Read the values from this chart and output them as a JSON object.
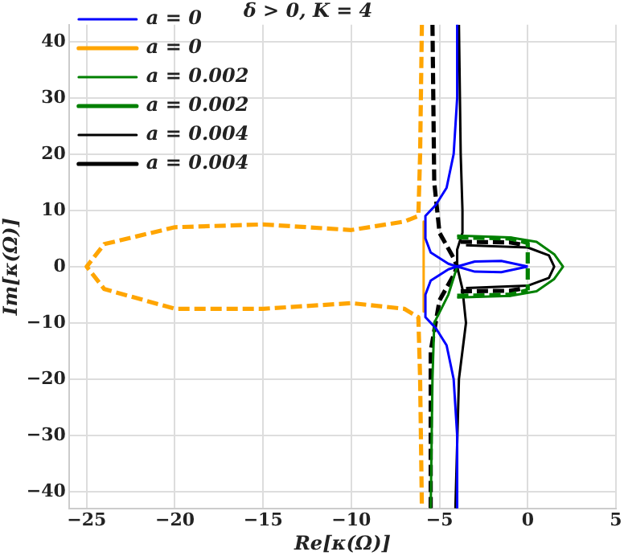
{
  "chart_data": {
    "type": "line",
    "title": "δ > 0, K = 4",
    "xlabel": "Re[κ(Ω)]",
    "ylabel": "Im[κ(Ω)]",
    "xlim": [
      -26,
      5
    ],
    "ylim": [
      -43,
      43
    ],
    "xticks": [
      -25,
      -20,
      -15,
      -10,
      -5,
      0,
      5
    ],
    "yticks": [
      -40,
      -30,
      -20,
      -10,
      0,
      10,
      20,
      30,
      40
    ],
    "grid": true,
    "legend": "top left",
    "marker": "none",
    "series": [
      {
        "name": "a = 0",
        "color": "#0000ff",
        "line_style": "solid",
        "x": [
          -4,
          -4,
          -4.2,
          -4.6,
          -5.2,
          -5.8,
          -5.8,
          -5.5,
          -4.5,
          -4,
          -4.5,
          -5.5,
          -5.8,
          -5.8,
          -5.2,
          -4.6,
          -4.2,
          -4,
          -4
        ],
        "values": [
          43,
          30,
          20,
          14,
          11,
          9,
          5,
          2.5,
          0.5,
          0,
          -0.5,
          -2.5,
          -5,
          -9,
          -11,
          -14,
          -20,
          -30,
          -43
        ]
      },
      {
        "color": "#0000ff",
        "line_style": "solid",
        "x": [
          -4,
          -3,
          -1.5,
          0
        ],
        "values": [
          0,
          0.9,
          1,
          0
        ]
      },
      {
        "color": "#0000ff",
        "line_style": "solid",
        "x": [
          -4,
          -3,
          -1.5,
          0
        ],
        "values": [
          0,
          -0.9,
          -1,
          0
        ]
      },
      {
        "name": "a = 0",
        "color": "#ffa500",
        "line_style": "dashed",
        "x": [
          -6,
          -6.1,
          -6.2,
          -7,
          -10,
          -15,
          -20,
          -24,
          -25,
          -24,
          -20,
          -15,
          -10,
          -7,
          -6.2,
          -6.1,
          -6
        ],
        "values": [
          43,
          20,
          9,
          8,
          6.5,
          7.5,
          7,
          4,
          0,
          -4,
          -7.5,
          -7.5,
          -6.5,
          -7.5,
          -9,
          -20,
          -43
        ]
      },
      {
        "color": "#ffa500",
        "line_style": "solid",
        "x": [
          -5.9,
          -5.9
        ],
        "values": [
          8,
          -8
        ]
      },
      {
        "name": "a = 0.002",
        "color": "#008000",
        "line_style": "solid",
        "x": [
          -5.5,
          -5.4,
          -5.3,
          -4.5,
          -4
        ],
        "values": [
          -43,
          -20,
          -10,
          -5,
          0
        ]
      },
      {
        "color": "#008000",
        "line_style": "solid",
        "x": [
          -4,
          -1,
          0.5,
          1.5,
          2,
          1.5,
          0.5,
          -1,
          -4
        ],
        "values": [
          5.5,
          5.2,
          4.4,
          2.2,
          0,
          -2.2,
          -4.4,
          -5.2,
          -5.5
        ]
      },
      {
        "name": "a = 0.002",
        "color": "#008000",
        "line_style": "dashed",
        "x": [
          -4,
          -1,
          0,
          0
        ],
        "values": [
          5.2,
          5,
          4.2,
          -4.2
        ]
      },
      {
        "color": "#008000",
        "line_style": "dashed",
        "x": [
          -4,
          -1,
          0
        ],
        "values": [
          -5.2,
          -5,
          -4.2
        ]
      },
      {
        "name": "a = 0.004",
        "color": "#000000",
        "line_style": "solid",
        "x": [
          -3.9,
          -3.8,
          -3.7,
          -3.7,
          -4,
          -4,
          -3.7,
          -3.5,
          -3.9,
          -4.1
        ],
        "values": [
          43,
          20,
          10,
          6,
          3,
          0,
          -4,
          -10,
          -20,
          -43
        ]
      },
      {
        "color": "#000000",
        "line_style": "solid",
        "x": [
          -3.5,
          0,
          1.2,
          1.5,
          1.2,
          0,
          -3.5
        ],
        "values": [
          3.8,
          3.4,
          2,
          0,
          -2,
          -3.4,
          -3.8
        ]
      },
      {
        "name": "a = 0.004",
        "color": "#000000",
        "line_style": "dashed",
        "x": [
          -5.4,
          -5.3,
          -5,
          -4.2,
          -4,
          -4.2,
          -5,
          -5.5,
          -5.5
        ],
        "values": [
          43,
          15,
          6,
          1.5,
          0,
          -1.5,
          -6,
          -15,
          -43
        ]
      },
      {
        "color": "#000000",
        "line_style": "dashed",
        "x": [
          -3.8,
          -1,
          -0.3
        ],
        "values": [
          4.4,
          4.3,
          3.9
        ]
      },
      {
        "color": "#000000",
        "line_style": "dashed",
        "x": [
          -3.8,
          -1,
          -0.3
        ],
        "values": [
          -4.4,
          -4.3,
          -3.9
        ]
      }
    ]
  }
}
